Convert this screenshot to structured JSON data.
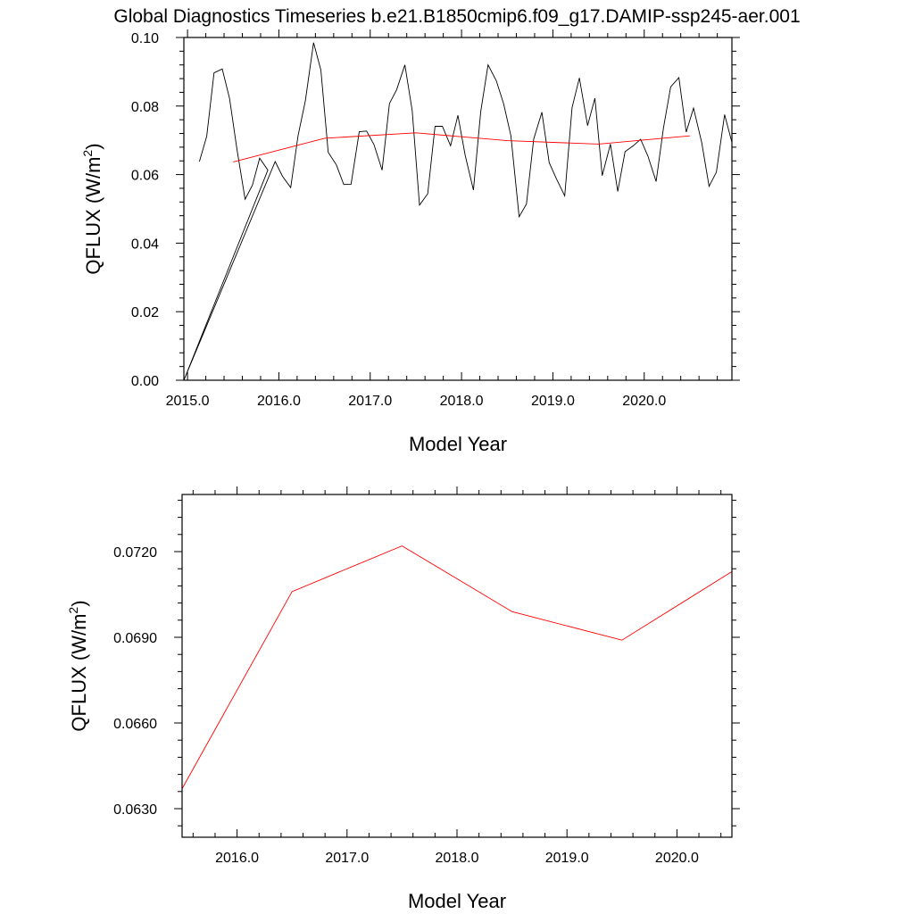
{
  "title": "Global Diagnostics Timeseries b.e21.B1850cmip6.f09_g17.DAMIP-ssp245-aer.001",
  "colors": {
    "monthly": "#000000",
    "annual": "#ff0000",
    "frame": "#000000"
  },
  "chart_data": [
    {
      "type": "line",
      "xlabel": "Model Year",
      "ylabel_main": "QFLUX (W/m",
      "ylabel_sup": "2",
      "ylabel_close": ")",
      "xlim": [
        2014.96,
        2020.96
      ],
      "ylim": [
        0.0,
        0.1
      ],
      "xticks": [
        2015.0,
        2016.0,
        2017.0,
        2018.0,
        2019.0,
        2020.0
      ],
      "xtick_labels": [
        "2015.0",
        "2016.0",
        "2017.0",
        "2018.0",
        "2019.0",
        "2020.0"
      ],
      "yticks": [
        0.0,
        0.02,
        0.04,
        0.06,
        0.08,
        0.1
      ],
      "ytick_labels": [
        "0.00",
        "0.02",
        "0.04",
        "0.06",
        "0.08",
        "0.10"
      ],
      "series": [
        {
          "color": "#000000",
          "x": [
            2015.13,
            2015.21,
            2015.29,
            2015.38,
            2015.46,
            2015.54,
            2015.63,
            2015.71,
            2015.79,
            2015.88,
            2014.96,
            2015.96,
            2016.04,
            2016.13,
            2016.21,
            2016.29,
            2016.38,
            2016.46,
            2016.54,
            2016.63,
            2016.71,
            2016.79,
            2016.88,
            2016.96,
            2017.04,
            2017.13,
            2017.21,
            2017.29,
            2017.38,
            2017.46,
            2017.54,
            2017.63,
            2017.71,
            2017.79,
            2017.88,
            2017.96,
            2018.04,
            2018.13,
            2018.21,
            2018.29,
            2018.38,
            2018.46,
            2018.54,
            2018.63,
            2018.71,
            2018.79,
            2018.88,
            2018.96,
            2019.04,
            2019.13,
            2019.21,
            2019.29,
            2019.38,
            2019.46,
            2019.54,
            2019.63,
            2019.71,
            2019.79,
            2019.88,
            2019.96,
            2020.04,
            2020.13,
            2020.21,
            2020.29,
            2020.38,
            2020.46,
            2020.54,
            2020.63,
            2020.71,
            2020.79,
            2020.88,
            2020.96
          ],
          "y": [
            0.0638,
            0.0712,
            0.0897,
            0.0908,
            0.0822,
            0.0675,
            0.0528,
            0.0569,
            0.0648,
            0.0613,
            0.0,
            0.0638,
            0.0595,
            0.0562,
            0.0713,
            0.0815,
            0.0985,
            0.0905,
            0.0665,
            0.0628,
            0.0571,
            0.0572,
            0.0725,
            0.0727,
            0.0688,
            0.0613,
            0.0807,
            0.0848,
            0.092,
            0.0787,
            0.0511,
            0.0544,
            0.0741,
            0.0741,
            0.0684,
            0.0773,
            0.0656,
            0.0555,
            0.0784,
            0.092,
            0.0874,
            0.0807,
            0.0713,
            0.0477,
            0.0514,
            0.0703,
            0.0782,
            0.0635,
            0.0587,
            0.0538,
            0.0795,
            0.0882,
            0.0743,
            0.0823,
            0.0597,
            0.0689,
            0.0551,
            0.0667,
            0.0684,
            0.0703,
            0.0654,
            0.058,
            0.0736,
            0.0856,
            0.0883,
            0.0724,
            0.0794,
            0.0693,
            0.0566,
            0.0607,
            0.0775,
            0.0694
          ]
        },
        {
          "color": "#ff0000",
          "x": [
            2015.5,
            2016.5,
            2017.5,
            2018.5,
            2019.5,
            2020.5
          ],
          "y": [
            0.0637,
            0.0706,
            0.0722,
            0.0699,
            0.0689,
            0.0713
          ]
        }
      ]
    },
    {
      "type": "line",
      "xlabel": "Model Year",
      "ylabel_main": "QFLUX (W/m",
      "ylabel_sup": "2",
      "ylabel_close": ")",
      "xlim": [
        2015.5,
        2020.5
      ],
      "ylim": [
        0.062,
        0.074
      ],
      "xticks": [
        2016.0,
        2017.0,
        2018.0,
        2019.0,
        2020.0
      ],
      "xtick_labels": [
        "2016.0",
        "2017.0",
        "2018.0",
        "2019.0",
        "2020.0"
      ],
      "yticks": [
        0.063,
        0.066,
        0.069,
        0.072
      ],
      "ytick_labels": [
        "0.0630",
        "0.0660",
        "0.0690",
        "0.0720"
      ],
      "series": [
        {
          "color": "#ff0000",
          "x": [
            2015.5,
            2016.5,
            2017.5,
            2018.5,
            2019.5,
            2020.5
          ],
          "y": [
            0.0637,
            0.0706,
            0.0722,
            0.0699,
            0.0689,
            0.0713
          ]
        }
      ]
    }
  ]
}
